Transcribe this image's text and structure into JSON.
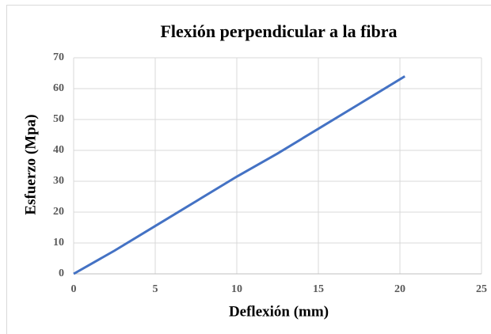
{
  "chart_data": {
    "type": "line",
    "title": "Flexión perpendicular a la fibra",
    "x_label": "Deflexión (mm)",
    "y_label": "Esfuerzo  (Mpa)",
    "x": [
      0,
      1,
      2.5,
      5,
      7.5,
      10,
      12.5,
      15,
      17.5,
      20.3
    ],
    "series": [
      {
        "name": "Esfuerzo",
        "color": "#4472c4",
        "values": [
          0,
          3,
          7.5,
          15.5,
          23.5,
          31.5,
          39,
          47,
          55,
          64
        ]
      }
    ],
    "xlim": [
      0,
      25
    ],
    "xticks": [
      0,
      5,
      10,
      15,
      20,
      25
    ],
    "ylim": [
      0,
      70
    ],
    "yticks": [
      0,
      10,
      20,
      30,
      40,
      50,
      60,
      70
    ],
    "grid": true
  }
}
